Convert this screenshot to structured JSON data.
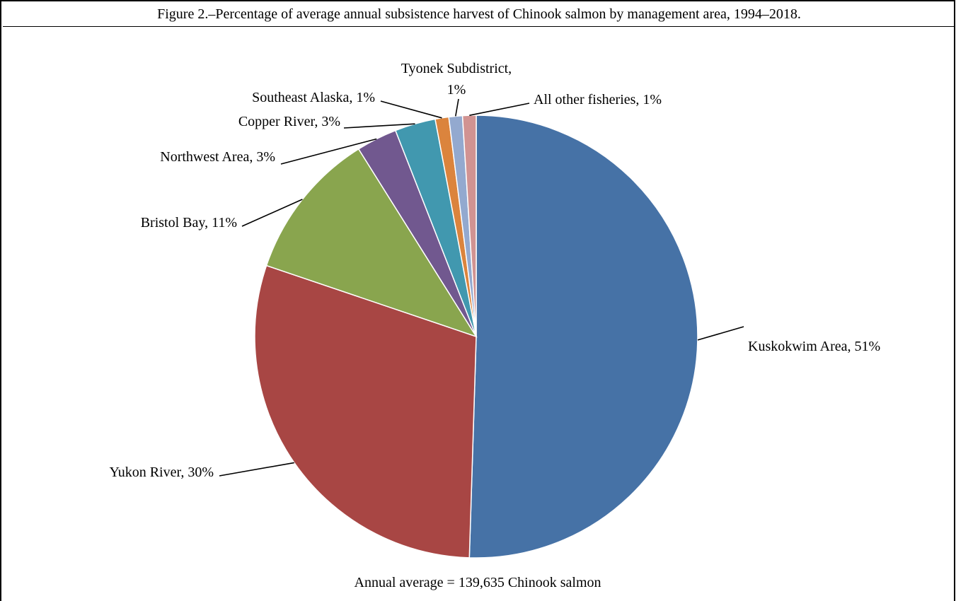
{
  "figure": {
    "title": "Figure 2.–Percentage of average annual subsistence harvest of Chinook salmon by management area, 1994–2018.",
    "note": "Annual average = 139,635 Chinook salmon"
  },
  "chart_data": {
    "type": "pie",
    "title": "Figure 2.–Percentage of average annual subsistence harvest of Chinook salmon by management area, 1994–2018.",
    "start_angle_deg": 0,
    "direction": "clockwise",
    "slices": [
      {
        "name": "Kuskokwim Area",
        "value": 51,
        "color": "#4672A6",
        "label_lines": [
          "Kuskokwim Area, 51%"
        ]
      },
      {
        "name": "Yukon River",
        "value": 30,
        "color": "#A84644",
        "label_lines": [
          "Yukon River, 30%"
        ]
      },
      {
        "name": "Bristol Bay",
        "value": 11,
        "color": "#89A54E",
        "label_lines": [
          "Bristol Bay, 11%"
        ]
      },
      {
        "name": "Northwest Area",
        "value": 3,
        "color": "#71588F",
        "label_lines": [
          "Northwest Area, 3%"
        ]
      },
      {
        "name": "Copper River",
        "value": 3,
        "color": "#4198AF",
        "label_lines": [
          "Copper River, 3%"
        ]
      },
      {
        "name": "Southeast Alaska",
        "value": 1,
        "color": "#DB843D",
        "label_lines": [
          "Southeast Alaska, 1%"
        ]
      },
      {
        "name": "Tyonek Subdistrict",
        "value": 1,
        "color": "#93A9CF",
        "label_lines": [
          "Tyonek Subdistrict,",
          "1%"
        ]
      },
      {
        "name": "All other fisheries",
        "value": 1,
        "color": "#D19392",
        "label_lines": [
          "All other fisheries, 1%"
        ]
      }
    ],
    "annotation": "Annual average = 139,635 Chinook salmon"
  }
}
